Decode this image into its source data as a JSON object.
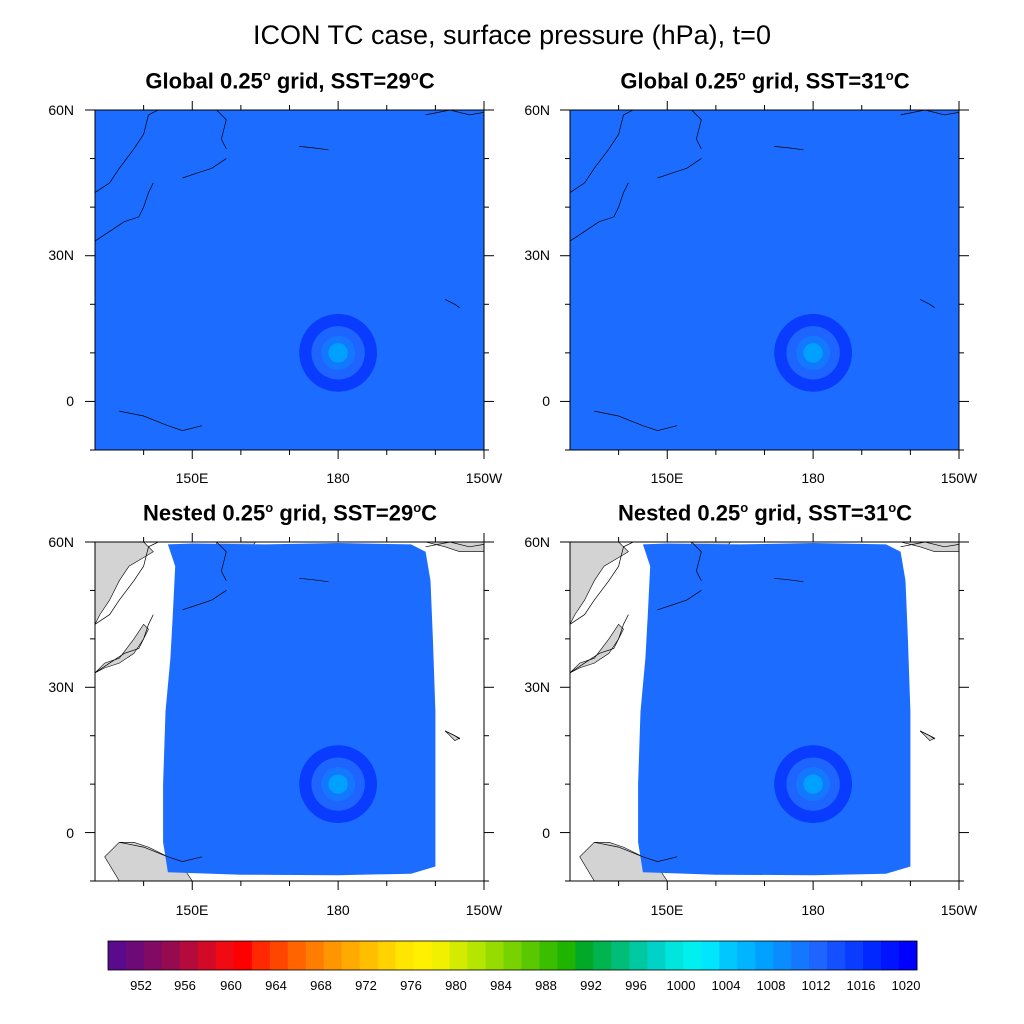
{
  "figure": {
    "title": "ICON TC case, surface pressure (hPa), t=0"
  },
  "panels": [
    {
      "prefix": "Global 0.25",
      "deg": "o",
      "mid": " grid, SST=29",
      "deg2": "o",
      "suffix": "C",
      "domain": "global"
    },
    {
      "prefix": "Global 0.25",
      "deg": "o",
      "mid": " grid, SST=31",
      "deg2": "o",
      "suffix": "C",
      "domain": "global"
    },
    {
      "prefix": "Nested 0.25",
      "deg": "o",
      "mid": " grid, SST=29",
      "deg2": "o",
      "suffix": "C",
      "domain": "nested"
    },
    {
      "prefix": "Nested 0.25",
      "deg": "o",
      "mid": " grid, SST=31",
      "deg2": "o",
      "suffix": "C",
      "domain": "nested"
    }
  ],
  "axes": {
    "lat_ticks": [
      "60N",
      "30N",
      "0"
    ],
    "lon_ticks": [
      "150E",
      "180",
      "150W"
    ],
    "lon_range": [
      130,
      210
    ],
    "lat_range": [
      -10,
      60
    ]
  },
  "field": {
    "variable": "surface pressure",
    "units": "hPa",
    "background_value": 1018,
    "cyclone_center": {
      "lon": 180,
      "lat": 10
    },
    "cyclone_rings": [
      {
        "radius_deg": 8,
        "value": 1016
      },
      {
        "radius_deg": 5.5,
        "value": 1013
      },
      {
        "radius_deg": 3.5,
        "value": 1011
      },
      {
        "radius_deg": 2,
        "value": 1009
      },
      {
        "radius_deg": 1,
        "value": 1008
      }
    ]
  },
  "colorbar": {
    "labels": [
      "952",
      "956",
      "960",
      "964",
      "968",
      "972",
      "976",
      "980",
      "984",
      "988",
      "992",
      "996",
      "1000",
      "1004",
      "1008",
      "1012",
      "1016",
      "1020"
    ],
    "colors": [
      "#5a0a8c",
      "#6e0a78",
      "#820a64",
      "#960a50",
      "#b40a3c",
      "#d20a28",
      "#f00a14",
      "#ff0000",
      "#ff2800",
      "#ff4600",
      "#ff6400",
      "#ff7d00",
      "#ff9600",
      "#ffaa00",
      "#ffbe00",
      "#ffd200",
      "#ffe600",
      "#fff000",
      "#f0f000",
      "#d2eb00",
      "#b4e600",
      "#96dc00",
      "#78d200",
      "#5ac800",
      "#3cbe00",
      "#1eb400",
      "#00aa28",
      "#00b450",
      "#00be78",
      "#00c8a0",
      "#00d2c8",
      "#00e6dc",
      "#00f0f0",
      "#00e6ff",
      "#00c8ff",
      "#00b4ff",
      "#00a0ff",
      "#0a8cff",
      "#1478ff",
      "#1e64ff",
      "#1450ff",
      "#0a3cff",
      "#0028ff",
      "#0014ff",
      "#0000ff"
    ]
  },
  "colors": {
    "ocean_field": "#1c6dff",
    "land_masked": "#d3d3d3",
    "coast": "#000000"
  }
}
